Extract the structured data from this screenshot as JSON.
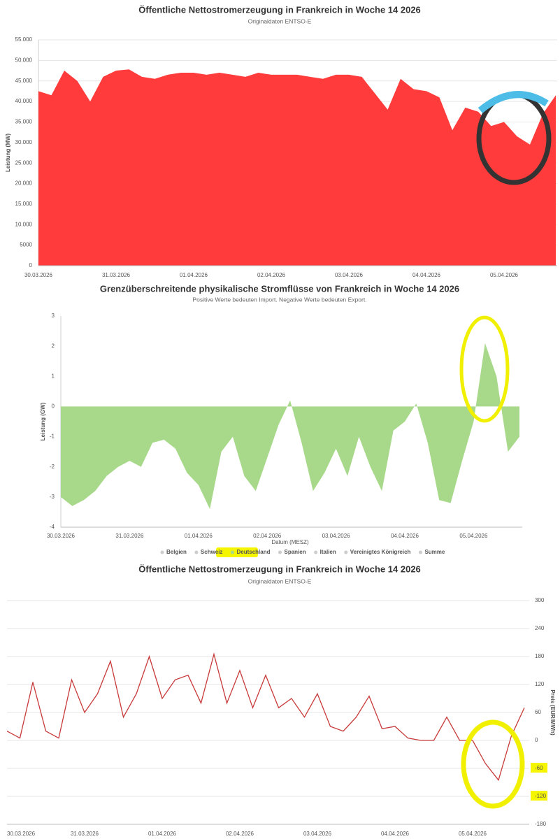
{
  "chart_data": [
    {
      "type": "area",
      "title": "Öffentliche Nettostromerzeugung in Frankreich in Woche 14 2026",
      "subtitle": "Originaldaten ENTSO-E",
      "ylabel": "Leistung (MW)",
      "color": "#ff3b3b",
      "grid": true,
      "categories": [
        "30.03.2026",
        null,
        null,
        null,
        null,
        null,
        "31.03.2026",
        null,
        null,
        null,
        null,
        null,
        "01.04.2026",
        null,
        null,
        null,
        null,
        null,
        "02.04.2026",
        null,
        null,
        null,
        null,
        null,
        "03.04.2026",
        null,
        null,
        null,
        null,
        null,
        "04.04.2026",
        null,
        null,
        null,
        null,
        null,
        "05.04.2026",
        null,
        null,
        null,
        null
      ],
      "values": [
        42500,
        41500,
        47500,
        45000,
        40000,
        46000,
        47500,
        47800,
        46000,
        45500,
        46500,
        47000,
        47000,
        46500,
        47000,
        46500,
        46000,
        47000,
        46500,
        46500,
        46500,
        46000,
        45500,
        46500,
        46500,
        46000,
        42000,
        38000,
        45500,
        43000,
        42500,
        41000,
        33000,
        38500,
        37500,
        34000,
        35000,
        31500,
        29500,
        37000,
        41500
      ],
      "ylim": [
        0,
        55000
      ],
      "yticks": [
        0,
        5000,
        {
          "value": 10000,
          "label": "10.000"
        },
        {
          "value": 15000,
          "label": "15.000"
        },
        {
          "value": 20000,
          "label": "20.000"
        },
        {
          "value": 25000,
          "label": "25.000"
        },
        {
          "value": 30000,
          "label": "30.000"
        },
        {
          "value": 35000,
          "label": "35.000"
        },
        {
          "value": 40000,
          "label": "40.000"
        },
        {
          "value": 45000,
          "label": "45.000"
        },
        {
          "value": 50000,
          "label": "50.000"
        },
        {
          "value": 55000,
          "label": "55.000"
        }
      ]
    },
    {
      "type": "area",
      "title": "Grenzüberschreitende physikalische Stromflüsse von Frankreich in Woche 14 2026",
      "subtitle": "Positive Werte bedeuten Import. Negative Werte bedeuten Export.",
      "ylabel": "Leistung (GW)",
      "xlabel": "Datum (MESZ)",
      "color": "#a8d98a",
      "grid": false,
      "categories": [
        "30.03.2026",
        null,
        null,
        null,
        null,
        null,
        "31.03.2026",
        null,
        null,
        null,
        null,
        null,
        "01.04.2026",
        null,
        null,
        null,
        null,
        null,
        "02.04.2026",
        null,
        null,
        null,
        null,
        null,
        "03.04.2026",
        null,
        null,
        null,
        null,
        null,
        "04.04.2026",
        null,
        null,
        null,
        null,
        null,
        "05.04.2026",
        null,
        null,
        null,
        null
      ],
      "values": [
        -3.0,
        -3.3,
        -3.1,
        -2.8,
        -2.3,
        -2.0,
        -1.8,
        -2.0,
        -1.2,
        -1.1,
        -1.4,
        -2.2,
        -2.6,
        -3.4,
        -1.5,
        -1.0,
        -2.3,
        -2.8,
        -1.7,
        -0.6,
        0.2,
        -1.2,
        -2.8,
        -2.2,
        -1.4,
        -2.3,
        -1.0,
        -2.0,
        -2.8,
        -0.8,
        -0.5,
        0.1,
        -1.2,
        -3.1,
        -3.2,
        -1.8,
        -0.5,
        2.1,
        1.0,
        -1.5,
        -1.0
      ],
      "ylim": [
        -4,
        3
      ],
      "yticks": [
        -4,
        -3,
        -2,
        -1,
        0,
        1,
        2,
        3
      ],
      "legend": [
        {
          "name": "Belgien",
          "visible": false
        },
        {
          "name": "Schweiz",
          "visible": false
        },
        {
          "name": "Deutschland",
          "visible": true
        },
        {
          "name": "Spanien",
          "visible": false
        },
        {
          "name": "Italien",
          "visible": false
        },
        {
          "name": "Vereinigtes Königreich",
          "visible": false
        },
        {
          "name": "Summe",
          "visible": false
        }
      ]
    },
    {
      "type": "line",
      "title": "Öffentliche Nettostromerzeugung in Frankreich in Woche 14 2026",
      "subtitle": "Originaldaten ENTSO-E",
      "ylabel": "Preis (EUR/MWh)",
      "color": "#c83a3a",
      "grid": true,
      "categories": [
        "30.03.2026",
        null,
        null,
        null,
        null,
        null,
        "31.03.2026",
        null,
        null,
        null,
        null,
        null,
        "01.04.2026",
        null,
        null,
        null,
        null,
        null,
        "02.04.2026",
        null,
        null,
        null,
        null,
        null,
        "03.04.2026",
        null,
        null,
        null,
        null,
        null,
        "04.04.2026",
        null,
        null,
        null,
        null,
        null,
        "05.04.2026",
        null,
        null,
        null,
        null
      ],
      "values": [
        20,
        5,
        125,
        20,
        5,
        130,
        60,
        100,
        170,
        50,
        100,
        180,
        90,
        130,
        140,
        80,
        185,
        80,
        150,
        70,
        140,
        70,
        90,
        50,
        100,
        30,
        20,
        50,
        95,
        25,
        30,
        5,
        0,
        0,
        50,
        0,
        0,
        -50,
        -85,
        10,
        70
      ],
      "ylim": [
        -180,
        300
      ],
      "yticks": [
        -180,
        -120,
        -60,
        0,
        60,
        120,
        180,
        240,
        300
      ]
    }
  ]
}
